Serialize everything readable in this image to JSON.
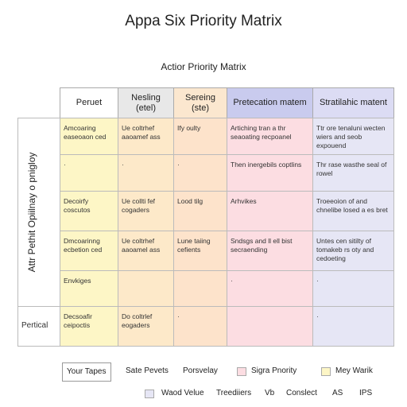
{
  "header": {
    "title": "Appa Six Priority Matrix",
    "subtitle": "Actior Priority Matrix"
  },
  "table": {
    "columns": [
      "Peruet",
      "Nesling (etel)",
      "Sereing (ste)",
      "Pretecation matem",
      "Stratilahic matent"
    ],
    "side_label": "Attr Pethit Opiilnay o pnigloy",
    "rows": [
      [
        "Amcoaring easeoaon ced",
        "Ue coltrhef aaoamef ass",
        "Ify oulty",
        "Artiching tran a thr seaoating recpoanel",
        "Ttr ore tenaluni wecten wiers and seob expouend"
      ],
      [
        "·",
        "·",
        "·",
        "Then inergebils coptlins",
        "Thr rase wasthe seal of rowel"
      ],
      [
        "Decoirfy coscutos",
        "Ue collti fef cogaders",
        "Lood tilg",
        "Arhvikes",
        "Troeeoion of and chnelibe losed a es bret"
      ],
      [
        "Dmcoarinng ecbetion ced",
        "Ue coltrhef aaoamel ass",
        "Lune taiing cefients",
        "Sndsgs and ll ell bist secraending",
        "Untes cen sitilty of tomakeb rs oty and cedoeting"
      ],
      [
        "Envkiges",
        null,
        null,
        "·",
        "·"
      ],
      [
        "Decsoafir ceipoctis",
        "Do coltrlef eogaders",
        "·",
        null,
        "·"
      ]
    ],
    "bottom_label": "Pertical"
  },
  "legend": {
    "row1": [
      "Your Tapes",
      "Sate Pevets",
      "Porsvelay",
      "Sigra Pnority",
      "Mey Warik"
    ],
    "row2": [
      "Waod Velue",
      "Treediiers",
      "Vb",
      "Conslect",
      "AS",
      "IPS"
    ]
  }
}
